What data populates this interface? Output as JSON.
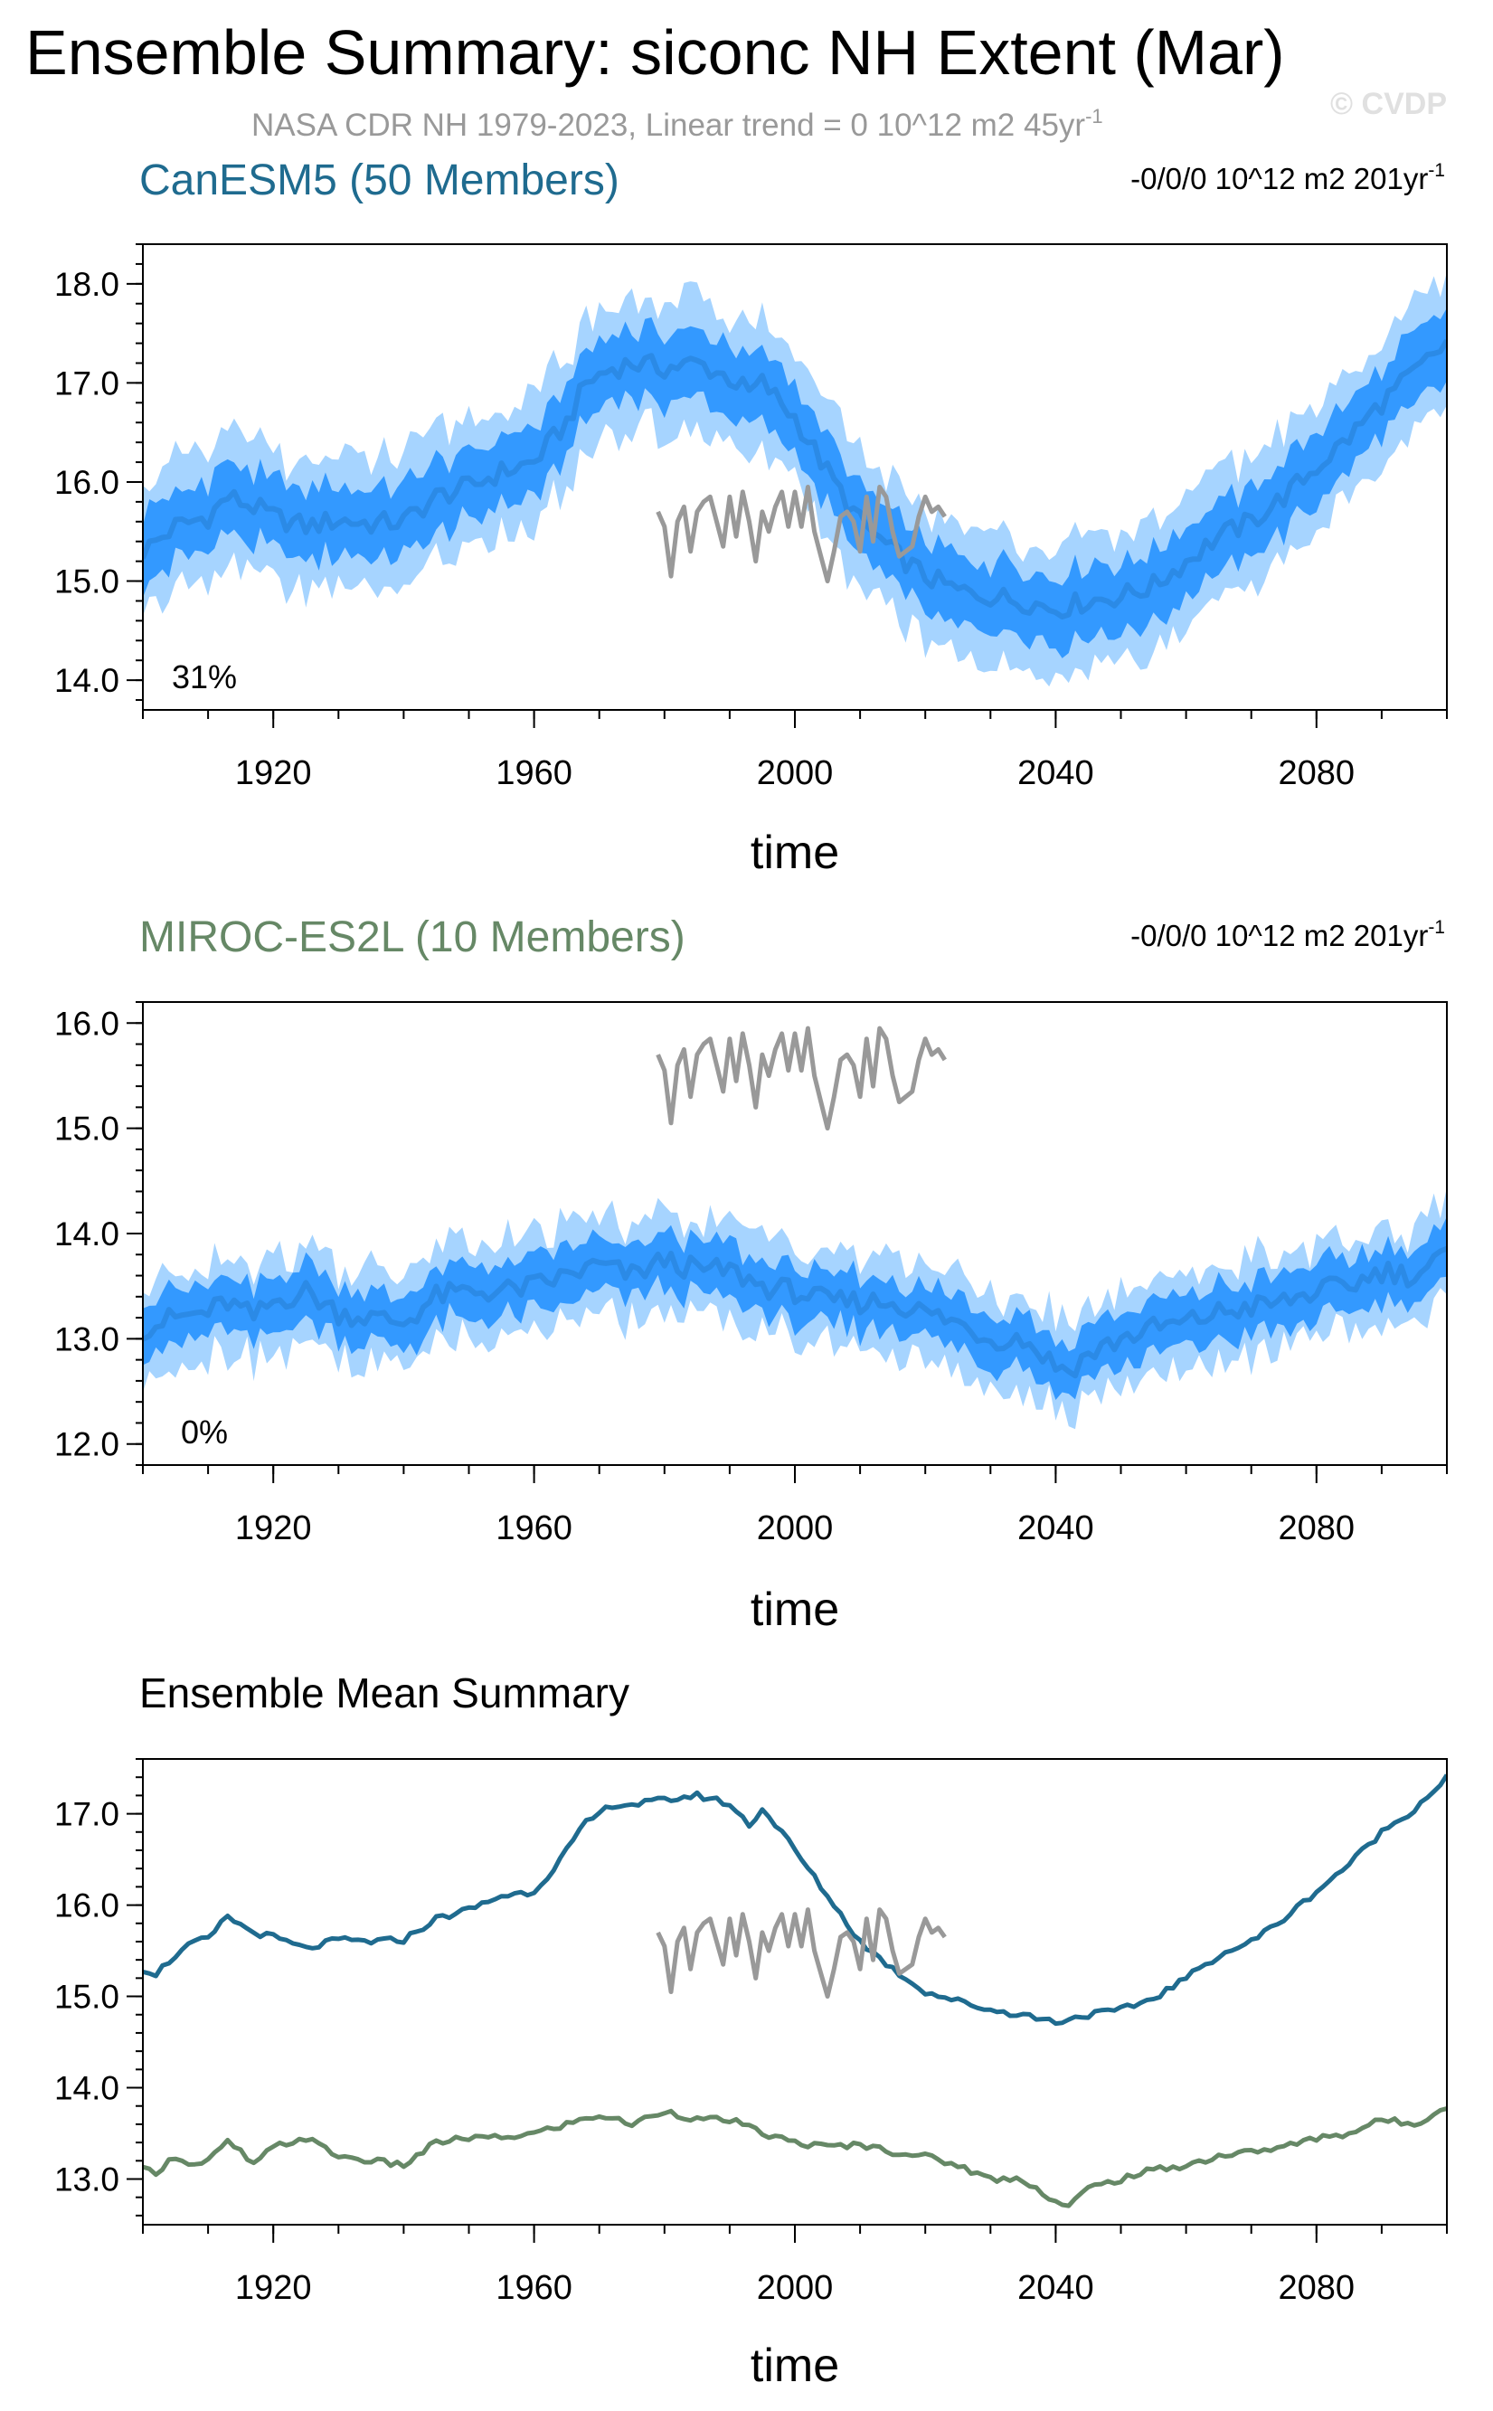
{
  "title": "Ensemble Summary: siconc NH Extent (Mar)",
  "subtitle_main": "NASA CDR NH 1979-2023, Linear trend = 0 10^12 m2 45yr",
  "subtitle_sup": "-1",
  "watermark": "© CVDP",
  "colors": {
    "band_outer": "#a6d4ff",
    "band_inner": "#3399ff",
    "mean_line": "#2b8ae6",
    "obs": "#999999",
    "canesm5": "#1f6b8f",
    "miroc": "#668866"
  },
  "chart_data": [
    {
      "type": "area",
      "panel_label": "CanESM5 (50 Members)",
      "trend_main": "-0/0/0 10^12 m2 201yr",
      "trend_sup": "-1",
      "percent_label": "31%",
      "xlabel": "time",
      "xlim": [
        1900,
        2100
      ],
      "ylim": [
        13.7,
        18.4
      ],
      "xticks": [
        1920,
        1960,
        2000,
        2040,
        2080
      ],
      "yticks": [
        14.0,
        15.0,
        16.0,
        17.0,
        18.0
      ],
      "ytick_labels": [
        "14.0",
        "15.0",
        "16.0",
        "17.0",
        "18.0"
      ],
      "series": [
        {
          "name": "CanESM5 (50 Members)",
          "x": [
            1900,
            1905,
            1910,
            1913,
            1917,
            1920,
            1925,
            1930,
            1935,
            1940,
            1945,
            1950,
            1955,
            1960,
            1965,
            1968,
            1972,
            1975,
            1980,
            1985,
            1990,
            1993,
            1995,
            2000,
            2005,
            2010,
            2015,
            2020,
            2025,
            2030,
            2035,
            2040,
            2045,
            2050,
            2055,
            2060,
            2065,
            2070,
            2075,
            2080,
            2085,
            2090,
            2095,
            2100
          ],
          "mean": [
            15.3,
            15.55,
            15.65,
            15.85,
            15.75,
            15.65,
            15.55,
            15.62,
            15.58,
            15.6,
            15.85,
            15.95,
            16.1,
            16.2,
            16.6,
            17.0,
            17.15,
            17.2,
            17.15,
            17.2,
            17.05,
            16.9,
            17.0,
            16.65,
            16.1,
            15.6,
            15.3,
            15.05,
            14.9,
            14.85,
            14.8,
            14.72,
            14.8,
            14.85,
            14.95,
            15.2,
            15.45,
            15.6,
            15.85,
            16.15,
            16.45,
            16.8,
            17.1,
            17.4
          ],
          "spread_inner": 0.35,
          "spread_outer": 0.65
        }
      ],
      "observations": {
        "name": "NASA CDR NH 1979-2023",
        "x": [
          1979,
          1980,
          1981,
          1982,
          1983,
          1984,
          1985,
          1986,
          1987,
          1988,
          1989,
          1990,
          1991,
          1992,
          1993,
          1994,
          1995,
          1996,
          1997,
          1998,
          1999,
          2000,
          2001,
          2002,
          2003,
          2004,
          2005,
          2006,
          2007,
          2008,
          2009,
          2010,
          2011,
          2012,
          2013,
          2014,
          2015,
          2016,
          2017,
          2018,
          2019,
          2020,
          2021,
          2022,
          2023
        ],
        "y": [
          15.7,
          15.55,
          15.05,
          15.6,
          15.75,
          15.3,
          15.7,
          15.8,
          15.85,
          15.6,
          15.35,
          15.85,
          15.45,
          15.9,
          15.6,
          15.2,
          15.7,
          15.5,
          15.75,
          15.9,
          15.55,
          15.9,
          15.55,
          15.95,
          15.5,
          15.25,
          15.0,
          15.3,
          15.65,
          15.7,
          15.6,
          15.3,
          15.85,
          15.4,
          15.95,
          15.85,
          15.5,
          15.25,
          15.3,
          15.35,
          15.65,
          15.85,
          15.7,
          15.75,
          15.65
        ]
      }
    },
    {
      "type": "area",
      "panel_label": "MIROC-ES2L (10 Members)",
      "trend_main": "-0/0/0 10^12 m2 201yr",
      "trend_sup": "-1",
      "percent_label": "0%",
      "xlabel": "time",
      "xlim": [
        1900,
        2100
      ],
      "ylim": [
        11.8,
        16.2
      ],
      "xticks": [
        1920,
        1960,
        2000,
        2040,
        2080
      ],
      "yticks": [
        12.0,
        13.0,
        14.0,
        15.0,
        16.0
      ],
      "ytick_labels": [
        "12.0",
        "13.0",
        "14.0",
        "15.0",
        "16.0"
      ],
      "series": [
        {
          "name": "MIROC-ES2L (10 Members)",
          "x": [
            1900,
            1905,
            1910,
            1913,
            1917,
            1920,
            1925,
            1930,
            1935,
            1940,
            1945,
            1950,
            1955,
            1960,
            1965,
            1970,
            1975,
            1980,
            1985,
            1990,
            1995,
            2000,
            2005,
            2010,
            2015,
            2020,
            2025,
            2030,
            2035,
            2040,
            2042,
            2045,
            2050,
            2055,
            2060,
            2065,
            2070,
            2075,
            2080,
            2085,
            2090,
            2095,
            2100
          ],
          "mean": [
            13.1,
            13.2,
            13.25,
            13.35,
            13.2,
            13.35,
            13.45,
            13.25,
            13.2,
            13.15,
            13.4,
            13.45,
            13.45,
            13.5,
            13.6,
            13.7,
            13.6,
            13.75,
            13.65,
            13.65,
            13.5,
            13.45,
            13.35,
            13.35,
            13.35,
            13.25,
            13.15,
            13.0,
            13.0,
            12.75,
            12.7,
            12.85,
            13.0,
            13.1,
            13.15,
            13.25,
            13.3,
            13.35,
            13.45,
            13.5,
            13.65,
            13.6,
            13.8
          ],
          "spread_inner": 0.25,
          "spread_outer": 0.45
        }
      ],
      "observations": {
        "name": "NASA CDR NH 1979-2023",
        "x": [
          1979,
          1980,
          1981,
          1982,
          1983,
          1984,
          1985,
          1986,
          1987,
          1988,
          1989,
          1990,
          1991,
          1992,
          1993,
          1994,
          1995,
          1996,
          1997,
          1998,
          1999,
          2000,
          2001,
          2002,
          2003,
          2004,
          2005,
          2006,
          2007,
          2008,
          2009,
          2010,
          2011,
          2012,
          2013,
          2014,
          2015,
          2016,
          2017,
          2018,
          2019,
          2020,
          2021,
          2022,
          2023
        ],
        "y": [
          15.7,
          15.55,
          15.05,
          15.6,
          15.75,
          15.3,
          15.7,
          15.8,
          15.85,
          15.6,
          15.35,
          15.85,
          15.45,
          15.9,
          15.6,
          15.2,
          15.7,
          15.5,
          15.75,
          15.9,
          15.55,
          15.9,
          15.55,
          15.95,
          15.5,
          15.25,
          15.0,
          15.3,
          15.65,
          15.7,
          15.6,
          15.3,
          15.85,
          15.4,
          15.95,
          15.85,
          15.5,
          15.25,
          15.3,
          15.35,
          15.65,
          15.85,
          15.7,
          15.75,
          15.65
        ]
      }
    },
    {
      "type": "line",
      "panel_label": "Ensemble Mean Summary",
      "xlabel": "time",
      "xlim": [
        1900,
        2100
      ],
      "ylim": [
        12.5,
        17.6
      ],
      "xticks": [
        1920,
        1960,
        2000,
        2040,
        2080
      ],
      "yticks": [
        13.0,
        14.0,
        15.0,
        16.0,
        17.0
      ],
      "ytick_labels": [
        "13.0",
        "14.0",
        "15.0",
        "16.0",
        "17.0"
      ],
      "series": [
        {
          "name": "CanESM5 (50 Members)",
          "x": [
            1900,
            1902,
            1905,
            1908,
            1910,
            1913,
            1915,
            1917,
            1920,
            1925,
            1930,
            1935,
            1940,
            1945,
            1950,
            1955,
            1960,
            1963,
            1965,
            1968,
            1970,
            1972,
            1975,
            1980,
            1985,
            1988,
            1990,
            1993,
            1995,
            1998,
            2000,
            2005,
            2010,
            2015,
            2020,
            2025,
            2030,
            2035,
            2040,
            2045,
            2050,
            2055,
            2060,
            2065,
            2070,
            2075,
            2080,
            2085,
            2090,
            2095,
            2100
          ],
          "y": [
            15.3,
            15.25,
            15.45,
            15.6,
            15.62,
            15.88,
            15.78,
            15.7,
            15.65,
            15.52,
            15.62,
            15.6,
            15.62,
            15.85,
            15.95,
            16.1,
            16.15,
            16.4,
            16.6,
            16.9,
            17.0,
            17.1,
            17.1,
            17.15,
            17.2,
            17.15,
            17.1,
            16.88,
            17.05,
            16.8,
            16.6,
            16.1,
            15.6,
            15.3,
            15.05,
            14.95,
            14.85,
            14.8,
            14.72,
            14.8,
            14.85,
            14.98,
            15.2,
            15.45,
            15.6,
            15.85,
            16.15,
            16.45,
            16.8,
            17.05,
            17.4
          ]
        },
        {
          "name": "MIROC-ES2L (10 Members)",
          "x": [
            1900,
            1902,
            1905,
            1908,
            1910,
            1913,
            1915,
            1917,
            1920,
            1925,
            1930,
            1935,
            1940,
            1945,
            1950,
            1955,
            1960,
            1965,
            1970,
            1975,
            1980,
            1985,
            1990,
            1995,
            2000,
            2005,
            2010,
            2015,
            2020,
            2025,
            2030,
            2035,
            2040,
            2042,
            2045,
            2050,
            2055,
            2060,
            2065,
            2070,
            2075,
            2080,
            2085,
            2090,
            2095,
            2100
          ],
          "y": [
            13.1,
            13.08,
            13.25,
            13.15,
            13.2,
            13.4,
            13.3,
            13.15,
            13.35,
            13.45,
            13.25,
            13.2,
            13.15,
            13.4,
            13.45,
            13.45,
            13.5,
            13.6,
            13.7,
            13.6,
            13.75,
            13.65,
            13.65,
            13.5,
            13.4,
            13.35,
            13.38,
            13.3,
            13.25,
            13.15,
            13.0,
            13.0,
            12.75,
            12.7,
            12.9,
            13.0,
            13.1,
            13.15,
            13.25,
            13.3,
            13.35,
            13.45,
            13.5,
            13.65,
            13.6,
            13.8
          ]
        }
      ],
      "observations": {
        "name": "NASA CDR NH 1979-2023",
        "x": [
          1979,
          1980,
          1981,
          1982,
          1983,
          1984,
          1985,
          1986,
          1987,
          1988,
          1989,
          1990,
          1991,
          1992,
          1993,
          1994,
          1995,
          1996,
          1997,
          1998,
          1999,
          2000,
          2001,
          2002,
          2003,
          2004,
          2005,
          2006,
          2007,
          2008,
          2009,
          2010,
          2011,
          2012,
          2013,
          2014,
          2015,
          2016,
          2017,
          2018,
          2019,
          2020,
          2021,
          2022,
          2023
        ],
        "y": [
          15.7,
          15.55,
          15.05,
          15.6,
          15.75,
          15.3,
          15.7,
          15.8,
          15.85,
          15.6,
          15.35,
          15.85,
          15.45,
          15.9,
          15.6,
          15.2,
          15.7,
          15.5,
          15.75,
          15.9,
          15.55,
          15.9,
          15.55,
          15.95,
          15.5,
          15.25,
          15.0,
          15.3,
          15.65,
          15.7,
          15.6,
          15.3,
          15.85,
          15.4,
          15.95,
          15.85,
          15.5,
          15.25,
          15.3,
          15.35,
          15.65,
          15.85,
          15.7,
          15.75,
          15.65
        ]
      }
    }
  ]
}
